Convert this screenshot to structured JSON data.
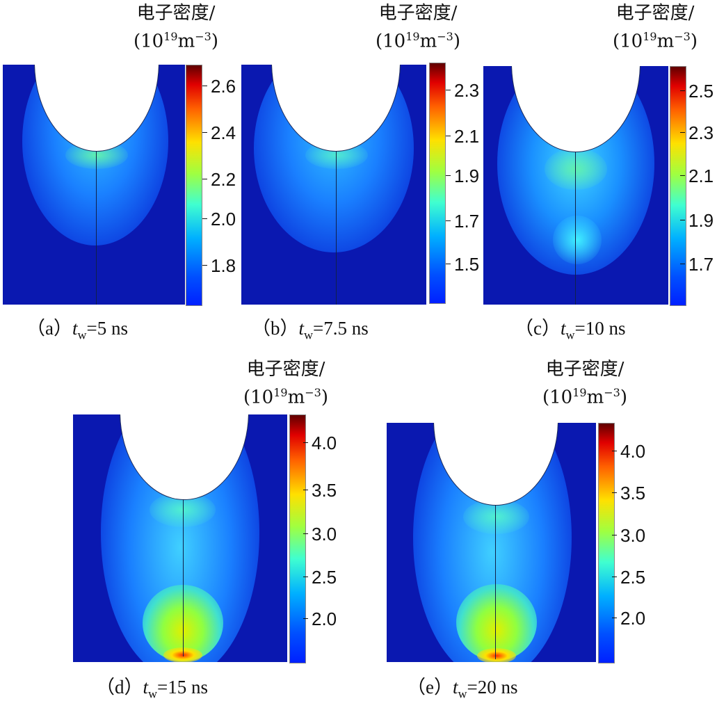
{
  "colorbar_label_line1": "电子密度/",
  "colorbar_unit_prefix": "(10",
  "colorbar_unit_exp": "19",
  "colorbar_unit_mid": "m",
  "colorbar_unit_exp2": "−3",
  "colorbar_unit_suffix": ")",
  "variable": "t",
  "variable_sub": "w",
  "panels": [
    {
      "label": "（a）",
      "value": "=5 ns",
      "ticks": [
        "2.6",
        "2.4",
        "2.2",
        "2.0",
        "1.8"
      ]
    },
    {
      "label": "（b）",
      "value": "=7.5 ns",
      "ticks": [
        "2.3",
        "2.1",
        "1.9",
        "1.7",
        "1.5"
      ]
    },
    {
      "label": "（c）",
      "value": "=10 ns",
      "ticks": [
        "2.5",
        "2.3",
        "2.1",
        "1.9",
        "1.7"
      ]
    },
    {
      "label": "（d）",
      "value": "=15 ns",
      "ticks": [
        "4.0",
        "3.5",
        "3.0",
        "2.5",
        "2.0"
      ]
    },
    {
      "label": "（e）",
      "value": "=20 ns",
      "ticks": [
        "4.0",
        "3.5",
        "3.0",
        "2.5",
        "2.0"
      ]
    }
  ]
}
